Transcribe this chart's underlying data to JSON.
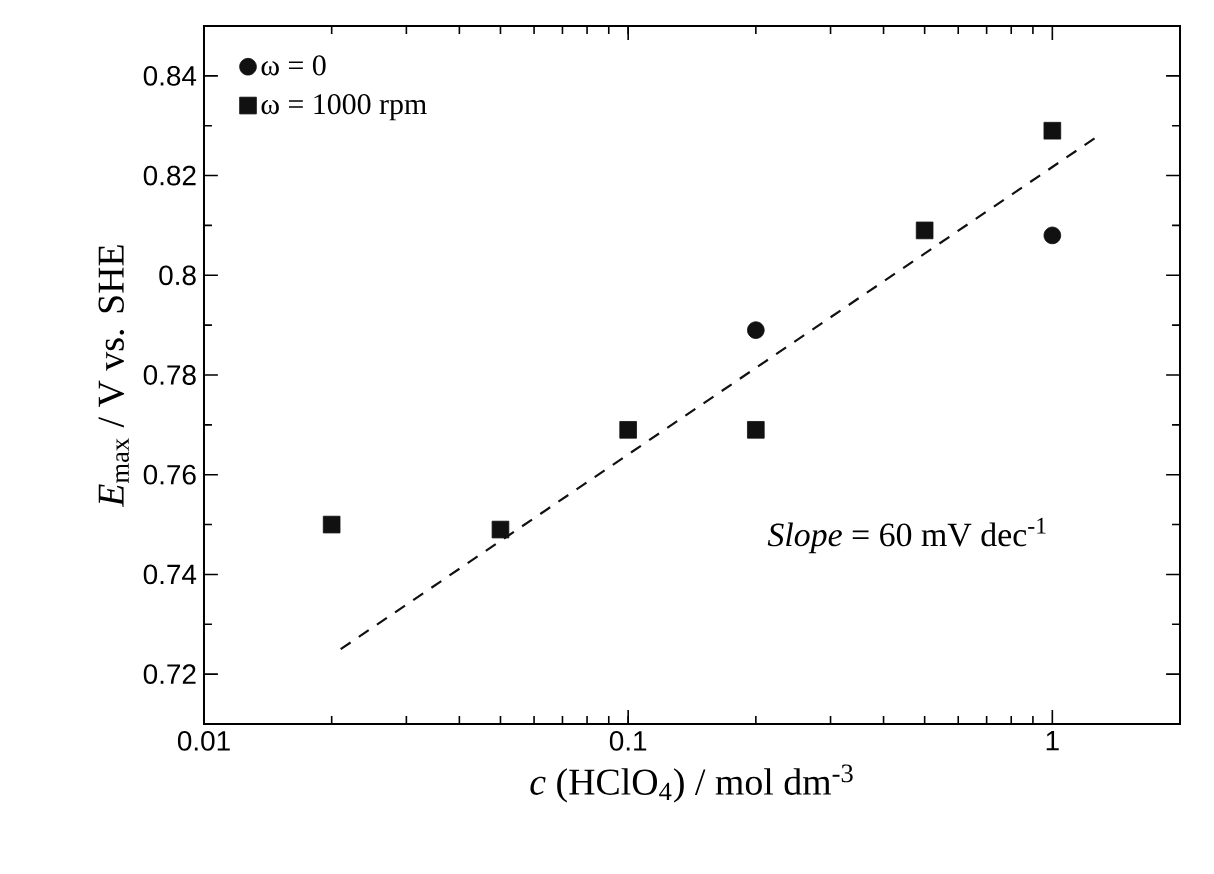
{
  "chart_data": {
    "type": "scatter",
    "xlabel": "*c* (HClO$_{4}$) / mol dm$^{-3}$",
    "ylabel": "*E*$_{max}$ / V vs. SHE",
    "x": [
      0.02,
      0.05,
      0.1,
      0.2,
      0.5,
      1
    ],
    "series": [
      {
        "name": "ω = 0",
        "color": "#111111",
        "marker": "circle",
        "values": [
          null,
          null,
          null,
          0.789,
          null,
          0.808
        ]
      },
      {
        "name": "ω = 1000 rpm",
        "color": "#111111",
        "marker": "square",
        "values": [
          0.75,
          0.749,
          0.769,
          0.769,
          0.809,
          0.829
        ]
      },
      {
        "type": "line",
        "color": "#111111",
        "line_style": "dashed",
        "marker": "none",
        "x": [
          0.021,
          1.26
        ],
        "values": [
          0.725,
          0.8275
        ]
      }
    ],
    "annotations": [
      "*Slope* = 60 mV dec$^{-1}$"
    ],
    "log": "x",
    "xlim": [
      0.01,
      2
    ],
    "xticks": [
      0.01,
      0.1,
      1
    ],
    "ylim": [
      0.71,
      0.85
    ],
    "yticks": [
      0.72,
      0.74,
      0.76,
      0.78,
      0.8,
      0.82,
      0.84
    ],
    "legend": "top left",
    "grid": false
  }
}
